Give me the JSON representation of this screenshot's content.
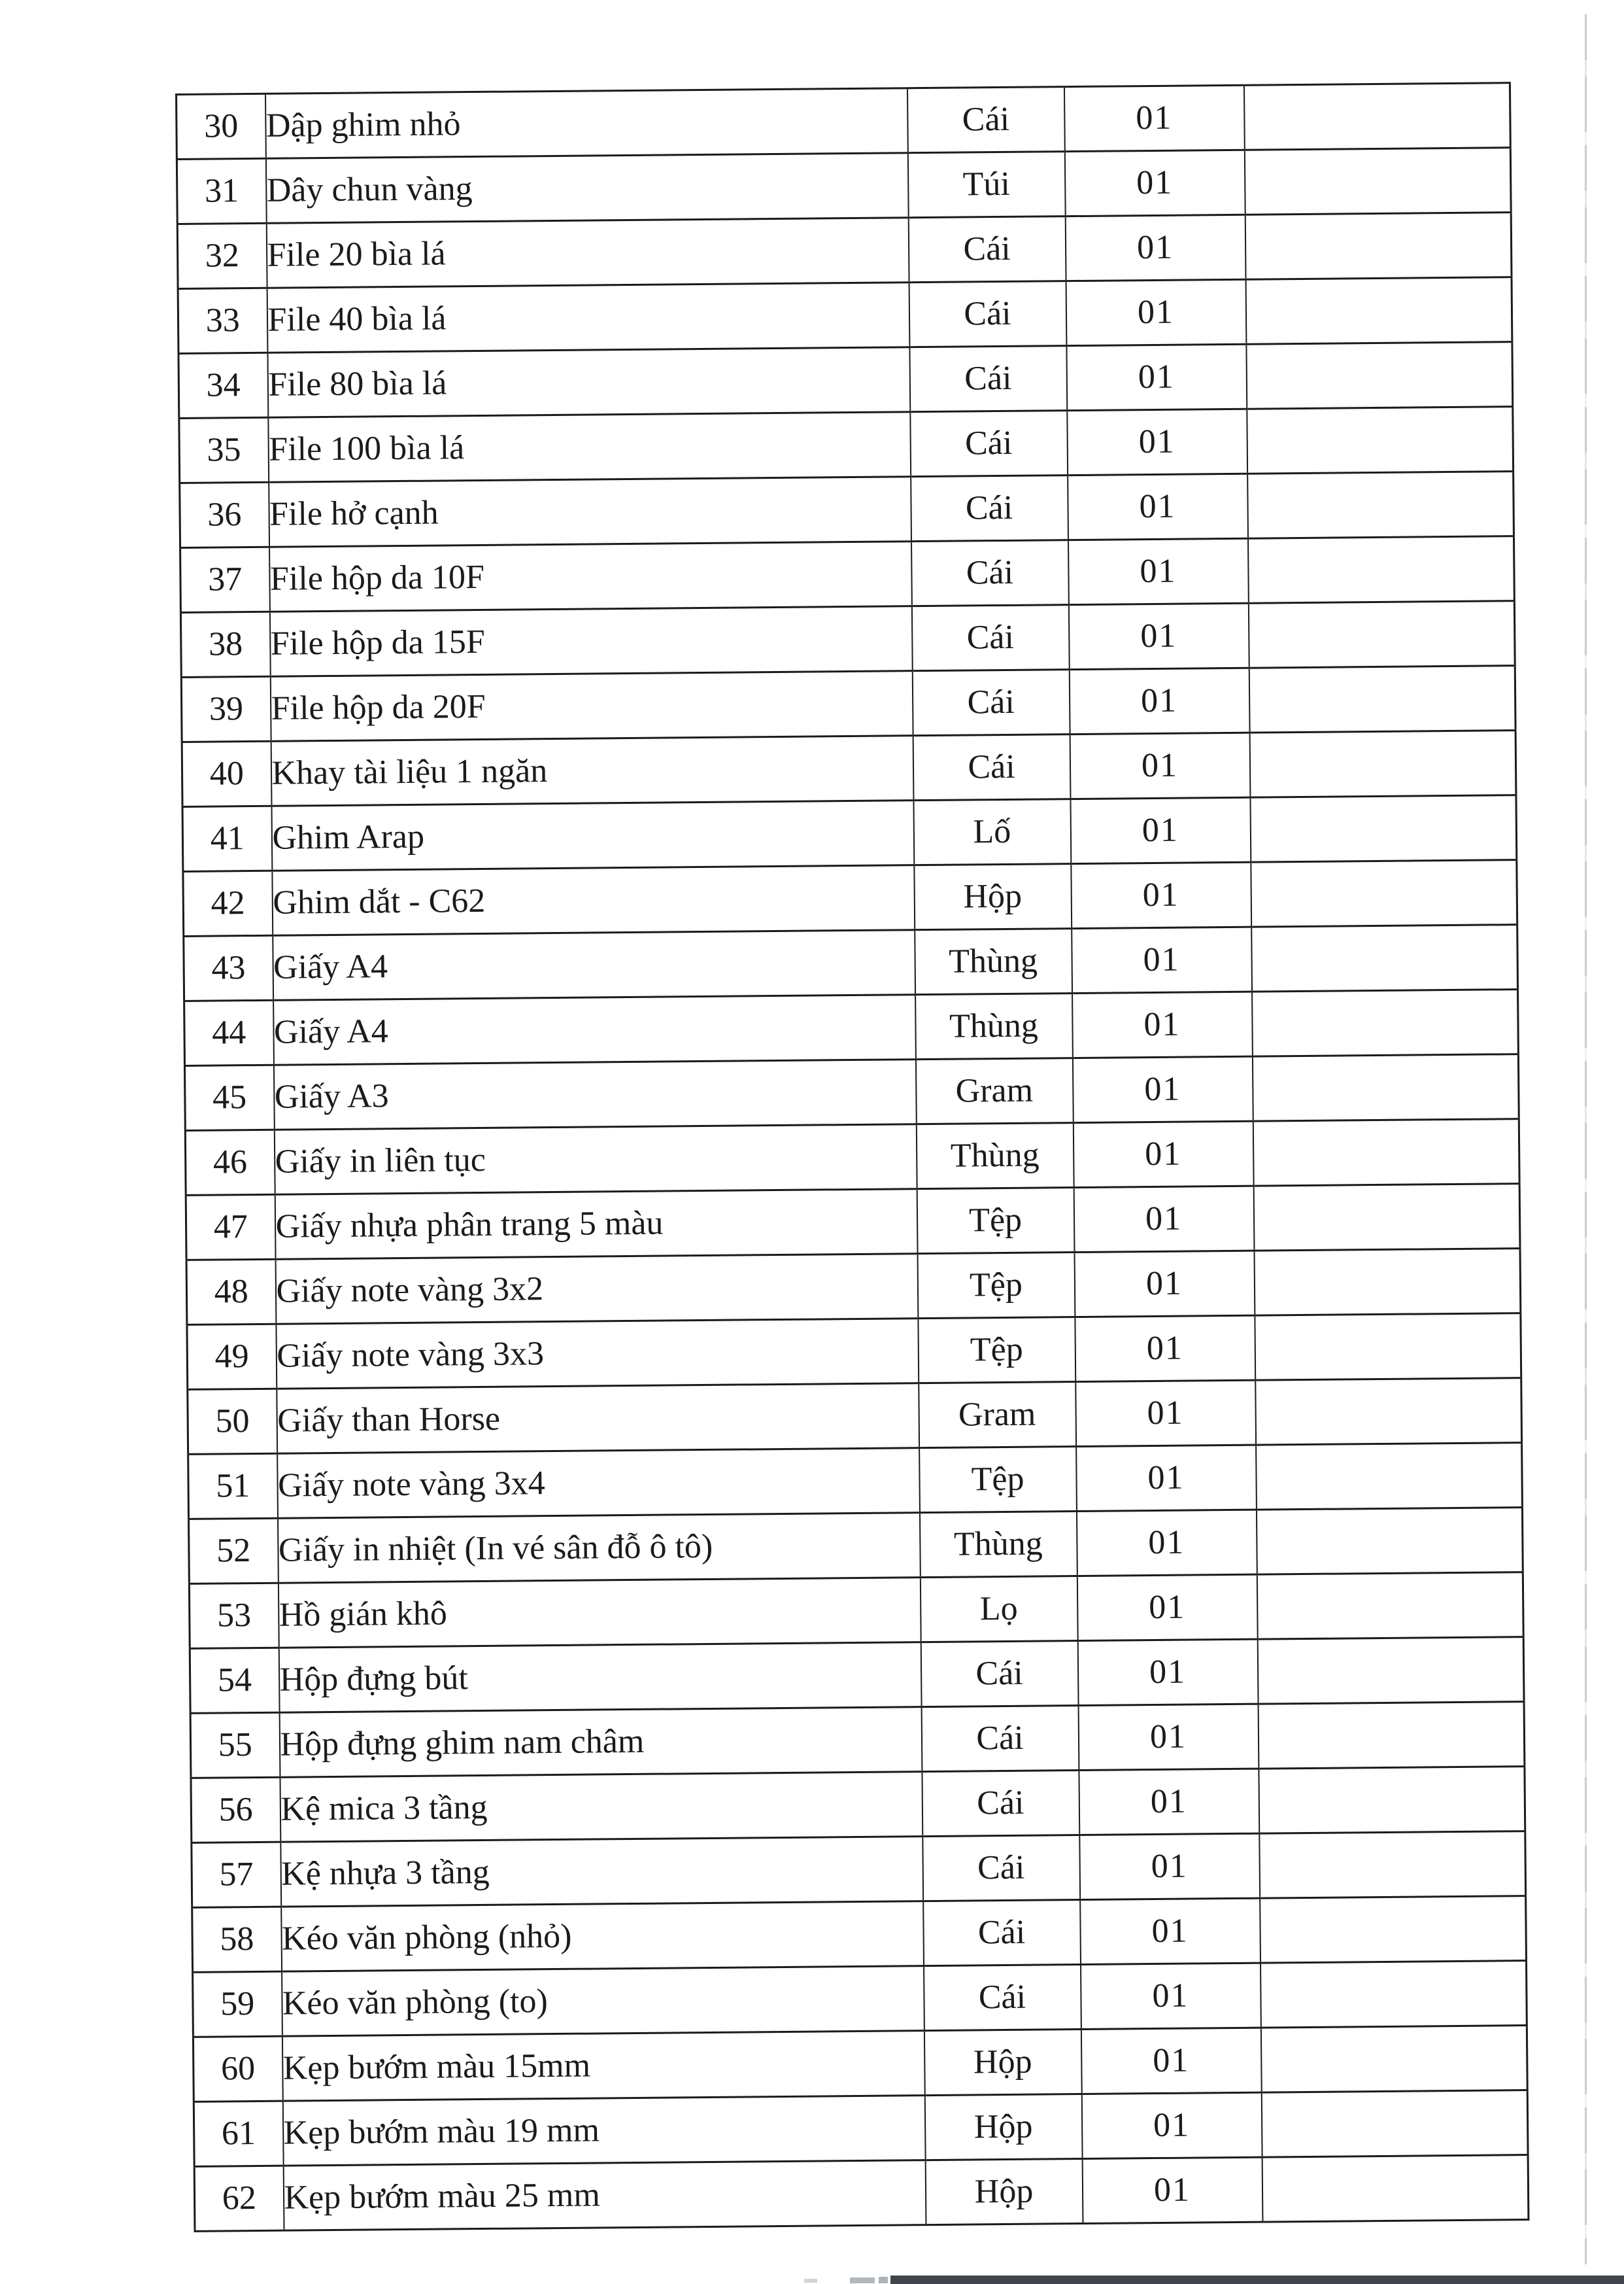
{
  "document": {
    "kind": "scanned office supplies request table (Vietnamese)",
    "page_background": "#ffffff"
  },
  "colors": {
    "ink": "#1b1b1b",
    "edge_line": "#c6c6c6",
    "bottom_bar": "#41454b",
    "bar_fragment": "#9aa0a6"
  },
  "table": {
    "rows": [
      {
        "no": "30",
        "name": "Dập ghim nhỏ",
        "unit": "Cái",
        "qty": "01",
        "note": ""
      },
      {
        "no": "31",
        "name": "Dây chun vàng",
        "unit": "Túi",
        "qty": "01",
        "note": ""
      },
      {
        "no": "32",
        "name": "File 20 bìa lá",
        "unit": "Cái",
        "qty": "01",
        "note": ""
      },
      {
        "no": "33",
        "name": "File 40 bìa lá",
        "unit": "Cái",
        "qty": "01",
        "note": ""
      },
      {
        "no": "34",
        "name": "File 80 bìa lá",
        "unit": "Cái",
        "qty": "01",
        "note": ""
      },
      {
        "no": "35",
        "name": "File 100 bìa lá",
        "unit": "Cái",
        "qty": "01",
        "note": ""
      },
      {
        "no": "36",
        "name": "File hở cạnh",
        "unit": "Cái",
        "qty": "01",
        "note": ""
      },
      {
        "no": "37",
        "name": "File hộp da 10F",
        "unit": "Cái",
        "qty": "01",
        "note": ""
      },
      {
        "no": "38",
        "name": "File hộp da 15F",
        "unit": "Cái",
        "qty": "01",
        "note": ""
      },
      {
        "no": "39",
        "name": "File hộp da 20F",
        "unit": "Cái",
        "qty": "01",
        "note": ""
      },
      {
        "no": "40",
        "name": "Khay tài liệu 1 ngăn",
        "unit": "Cái",
        "qty": "01",
        "note": ""
      },
      {
        "no": "41",
        "name": "Ghim Arap",
        "unit": "Lố",
        "qty": "01",
        "note": ""
      },
      {
        "no": "42",
        "name": "Ghim dắt - C62",
        "unit": "Hộp",
        "qty": "01",
        "note": ""
      },
      {
        "no": "43",
        "name": "Giấy A4",
        "unit": "Thùng",
        "qty": "01",
        "note": ""
      },
      {
        "no": "44",
        "name": "Giấy A4",
        "unit": "Thùng",
        "qty": "01",
        "note": ""
      },
      {
        "no": "45",
        "name": "Giấy A3",
        "unit": "Gram",
        "qty": "01",
        "note": ""
      },
      {
        "no": "46",
        "name": "Giấy in liên tục",
        "unit": "Thùng",
        "qty": "01",
        "note": ""
      },
      {
        "no": "47",
        "name": "Giấy nhựa phân trang 5 màu",
        "unit": "Tệp",
        "qty": "01",
        "note": ""
      },
      {
        "no": "48",
        "name": "Giấy note vàng 3x2",
        "unit": "Tệp",
        "qty": "01",
        "note": ""
      },
      {
        "no": "49",
        "name": "Giấy note vàng 3x3",
        "unit": "Tệp",
        "qty": "01",
        "note": ""
      },
      {
        "no": "50",
        "name": "Giấy than Horse",
        "unit": "Gram",
        "qty": "01",
        "note": ""
      },
      {
        "no": "51",
        "name": "Giấy note vàng 3x4",
        "unit": "Tệp",
        "qty": "01",
        "note": ""
      },
      {
        "no": "52",
        "name": "Giấy in nhiệt (In vé sân đỗ ô tô)",
        "unit": "Thùng",
        "qty": "01",
        "note": ""
      },
      {
        "no": "53",
        "name": "Hồ gián khô",
        "unit": "Lọ",
        "qty": "01",
        "note": ""
      },
      {
        "no": "54",
        "name": "Hộp đựng bút",
        "unit": "Cái",
        "qty": "01",
        "note": ""
      },
      {
        "no": "55",
        "name": "Hộp đựng ghim nam châm",
        "unit": "Cái",
        "qty": "01",
        "note": ""
      },
      {
        "no": "56",
        "name": "Kệ mica 3 tầng",
        "unit": "Cái",
        "qty": "01",
        "note": ""
      },
      {
        "no": "57",
        "name": "Kệ nhựa 3 tầng",
        "unit": "Cái",
        "qty": "01",
        "note": ""
      },
      {
        "no": "58",
        "name": "Kéo văn phòng (nhỏ)",
        "unit": "Cái",
        "qty": "01",
        "note": ""
      },
      {
        "no": "59",
        "name": "Kéo văn phòng (to)",
        "unit": "Cái",
        "qty": "01",
        "note": ""
      },
      {
        "no": "60",
        "name": "Kẹp bướm màu 15mm",
        "unit": "Hộp",
        "qty": "01",
        "note": ""
      },
      {
        "no": "61",
        "name": "Kẹp bướm màu 19 mm",
        "unit": "Hộp",
        "qty": "01",
        "note": ""
      },
      {
        "no": "62",
        "name": "Kẹp bướm màu 25 mm",
        "unit": "Hộp",
        "qty": "01",
        "note": ""
      }
    ]
  }
}
